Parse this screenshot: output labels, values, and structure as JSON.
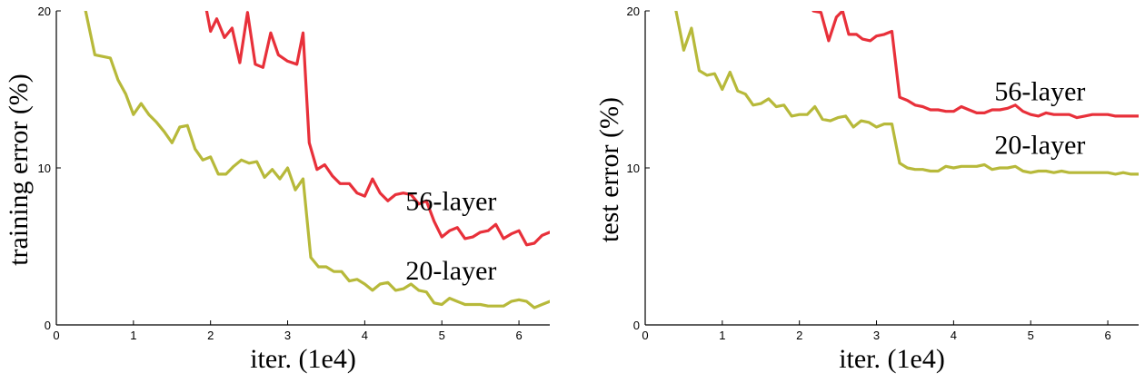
{
  "chart_data": [
    {
      "type": "line",
      "title": "",
      "xlabel": "iter. (1e4)",
      "ylabel": "training error (%)",
      "xlim": [
        0,
        6.4
      ],
      "ylim": [
        0,
        20
      ],
      "xticks": [
        "0",
        "1",
        "2",
        "3",
        "4",
        "5",
        "6"
      ],
      "yticks": [
        "0",
        "10",
        "20"
      ],
      "grid": false,
      "legend": "none",
      "series": [
        {
          "name": "56-layer",
          "color": "#e8303a",
          "x": [
            1.95,
            2.0,
            2.08,
            2.18,
            2.28,
            2.38,
            2.48,
            2.58,
            2.68,
            2.78,
            2.88,
            3.0,
            3.12,
            3.2,
            3.28,
            3.38,
            3.48,
            3.58,
            3.68,
            3.8,
            3.9,
            4.0,
            4.1,
            4.2,
            4.3,
            4.4,
            4.5,
            4.6,
            4.7,
            4.8,
            4.9,
            5.0,
            5.1,
            5.2,
            5.3,
            5.4,
            5.5,
            5.6,
            5.7,
            5.8,
            5.9,
            6.0,
            6.1,
            6.2,
            6.3,
            6.4
          ],
          "y": [
            20.0,
            18.7,
            19.5,
            18.3,
            18.9,
            16.7,
            19.9,
            16.6,
            16.4,
            18.6,
            17.2,
            16.8,
            16.6,
            18.6,
            11.6,
            9.9,
            10.2,
            9.5,
            9.0,
            9.0,
            8.4,
            8.2,
            9.3,
            8.4,
            7.9,
            8.3,
            8.4,
            8.3,
            7.7,
            7.9,
            6.6,
            5.6,
            6.0,
            6.2,
            5.5,
            5.6,
            5.9,
            6.0,
            6.4,
            5.5,
            5.8,
            6.0,
            5.1,
            5.2,
            5.7,
            5.9
          ]
        },
        {
          "name": "20-layer",
          "color": "#b7b93a",
          "x": [
            0.38,
            0.5,
            0.6,
            0.7,
            0.8,
            0.9,
            1.0,
            1.1,
            1.2,
            1.3,
            1.4,
            1.5,
            1.6,
            1.7,
            1.8,
            1.9,
            2.0,
            2.1,
            2.2,
            2.3,
            2.4,
            2.5,
            2.6,
            2.7,
            2.8,
            2.9,
            3.0,
            3.1,
            3.2,
            3.3,
            3.4,
            3.5,
            3.6,
            3.7,
            3.8,
            3.9,
            4.0,
            4.1,
            4.2,
            4.3,
            4.4,
            4.5,
            4.6,
            4.7,
            4.8,
            4.9,
            5.0,
            5.1,
            5.2,
            5.3,
            5.4,
            5.5,
            5.6,
            5.7,
            5.8,
            5.9,
            6.0,
            6.1,
            6.2,
            6.3,
            6.4
          ],
          "y": [
            20.0,
            17.2,
            17.1,
            17.0,
            15.6,
            14.7,
            13.4,
            14.1,
            13.4,
            12.9,
            12.3,
            11.6,
            12.6,
            12.7,
            11.2,
            10.5,
            10.7,
            9.6,
            9.6,
            10.1,
            10.5,
            10.3,
            10.4,
            9.4,
            9.9,
            9.3,
            10.0,
            8.6,
            9.3,
            4.3,
            3.7,
            3.7,
            3.4,
            3.4,
            2.8,
            2.9,
            2.6,
            2.2,
            2.6,
            2.7,
            2.2,
            2.3,
            2.6,
            2.2,
            2.1,
            1.4,
            1.3,
            1.7,
            1.5,
            1.3,
            1.3,
            1.3,
            1.2,
            1.2,
            1.2,
            1.5,
            1.6,
            1.5,
            1.1,
            1.3,
            1.5
          ]
        }
      ]
    },
    {
      "type": "line",
      "title": "",
      "xlabel": "iter. (1e4)",
      "ylabel": "test error (%)",
      "xlim": [
        0,
        6.4
      ],
      "ylim": [
        0,
        20
      ],
      "xticks": [
        "0",
        "1",
        "2",
        "3",
        "4",
        "5",
        "6"
      ],
      "yticks": [
        "0",
        "10",
        "20"
      ],
      "grid": false,
      "legend": "none",
      "series": [
        {
          "name": "56-layer",
          "color": "#e8303a",
          "x": [
            2.18,
            2.28,
            2.38,
            2.48,
            2.56,
            2.64,
            2.74,
            2.82,
            2.92,
            3.0,
            3.1,
            3.2,
            3.3,
            3.4,
            3.5,
            3.6,
            3.7,
            3.8,
            3.9,
            4.0,
            4.1,
            4.2,
            4.3,
            4.4,
            4.5,
            4.6,
            4.7,
            4.8,
            4.9,
            5.0,
            5.1,
            5.2,
            5.3,
            5.4,
            5.5,
            5.6,
            5.7,
            5.8,
            5.9,
            6.0,
            6.1,
            6.2,
            6.3,
            6.4
          ],
          "y": [
            20.0,
            19.9,
            18.1,
            19.6,
            20.0,
            18.5,
            18.5,
            18.2,
            18.1,
            18.4,
            18.5,
            18.7,
            14.5,
            14.3,
            14.0,
            13.9,
            13.7,
            13.7,
            13.6,
            13.6,
            13.9,
            13.7,
            13.5,
            13.5,
            13.7,
            13.7,
            13.8,
            14.0,
            13.6,
            13.4,
            13.3,
            13.5,
            13.4,
            13.4,
            13.4,
            13.2,
            13.3,
            13.4,
            13.4,
            13.4,
            13.3,
            13.3,
            13.3,
            13.3
          ]
        },
        {
          "name": "20-layer",
          "color": "#b7b93a",
          "x": [
            0.4,
            0.5,
            0.6,
            0.7,
            0.8,
            0.9,
            1.0,
            1.1,
            1.2,
            1.3,
            1.4,
            1.5,
            1.6,
            1.7,
            1.8,
            1.9,
            2.0,
            2.1,
            2.2,
            2.3,
            2.4,
            2.5,
            2.6,
            2.7,
            2.8,
            2.9,
            3.0,
            3.1,
            3.2,
            3.3,
            3.4,
            3.5,
            3.6,
            3.7,
            3.8,
            3.9,
            4.0,
            4.1,
            4.2,
            4.3,
            4.4,
            4.5,
            4.6,
            4.7,
            4.8,
            4.9,
            5.0,
            5.1,
            5.2,
            5.3,
            5.4,
            5.5,
            5.6,
            5.7,
            5.8,
            5.9,
            6.0,
            6.1,
            6.2,
            6.3,
            6.4
          ],
          "y": [
            20.0,
            17.5,
            18.9,
            16.2,
            15.9,
            16.0,
            15.0,
            16.1,
            14.9,
            14.7,
            14.0,
            14.1,
            14.4,
            13.9,
            14.0,
            13.3,
            13.4,
            13.4,
            13.9,
            13.1,
            13.0,
            13.2,
            13.3,
            12.6,
            13.0,
            12.9,
            12.6,
            12.8,
            12.8,
            10.3,
            10.0,
            9.9,
            9.9,
            9.8,
            9.8,
            10.1,
            10.0,
            10.1,
            10.1,
            10.1,
            10.2,
            9.9,
            10.0,
            10.0,
            10.1,
            9.8,
            9.7,
            9.8,
            9.8,
            9.7,
            9.8,
            9.7,
            9.7,
            9.7,
            9.7,
            9.7,
            9.7,
            9.6,
            9.7,
            9.6,
            9.6
          ]
        }
      ]
    }
  ]
}
